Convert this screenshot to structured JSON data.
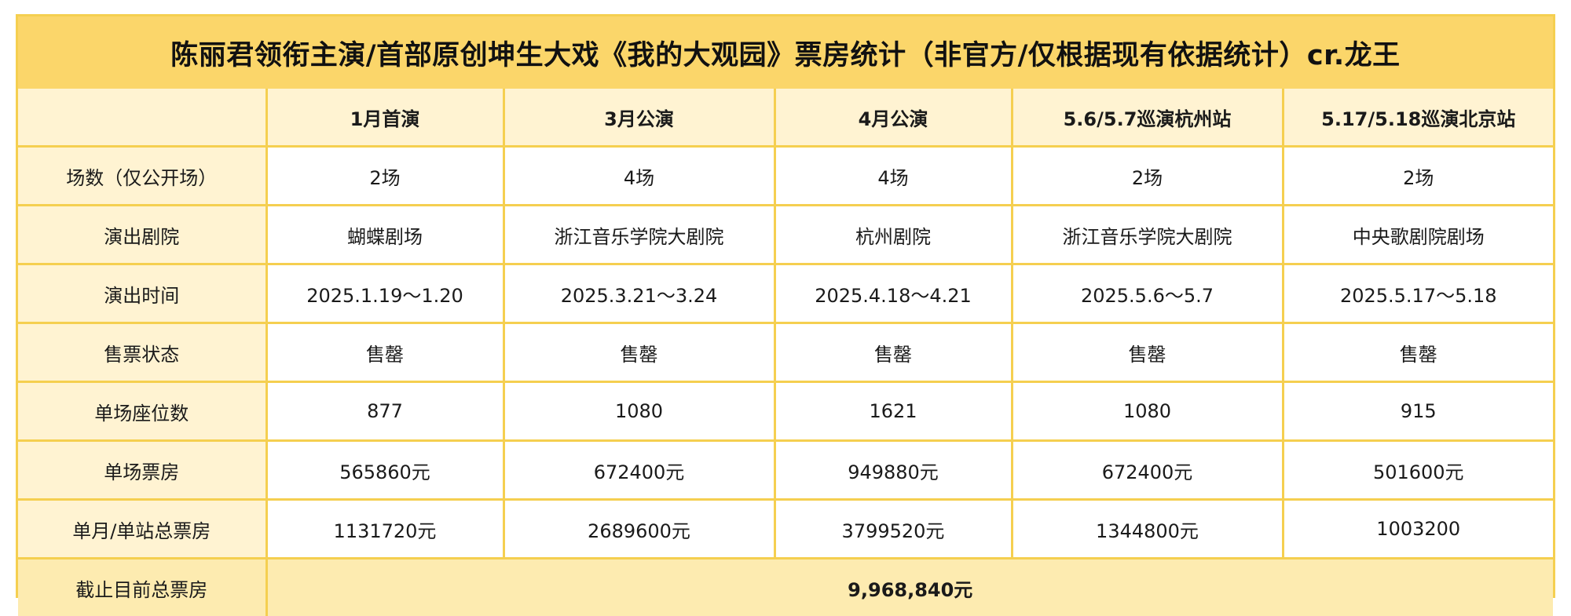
{
  "title": "陈丽君领衔主演/首部原创坤生大戏《我的大观园》票房统计（非官方/仅根据现有依据统计）cr.龙王",
  "columns": [
    "1月首演",
    "3月公演",
    "4月公演",
    "5.6/5.7巡演杭州站",
    "5.17/5.18巡演北京站"
  ],
  "rows": [
    {
      "label": "场数（仅公开场）",
      "values": [
        "2场",
        "4场",
        "4场",
        "2场",
        "2场"
      ]
    },
    {
      "label": "演出剧院",
      "values": [
        "蝴蝶剧场",
        "浙江音乐学院大剧院",
        "杭州剧院",
        "浙江音乐学院大剧院",
        "中央歌剧院剧场"
      ]
    },
    {
      "label": "演出时间",
      "values": [
        "2025.1.19～1.20",
        "2025.3.21～3.24",
        "2025.4.18～4.21",
        "2025.5.6～5.7",
        "2025.5.17～5.18"
      ]
    },
    {
      "label": "售票状态",
      "values": [
        "售罄",
        "售罄",
        "售罄",
        "售罄",
        "售罄"
      ]
    },
    {
      "label": "单场座位数",
      "values": [
        "877",
        "1080",
        "1621",
        "1080",
        "915"
      ]
    },
    {
      "label": "单场票房",
      "values": [
        "565860元",
        "672400元",
        "949880元",
        "672400元",
        "501600元"
      ]
    },
    {
      "label": "单月/单站总票房",
      "values": [
        "1131720元",
        "2689600元",
        "3799520元",
        "1344800元",
        "1003200"
      ]
    }
  ],
  "total": {
    "label": "截止目前总票房",
    "value": "9,968,840元"
  },
  "colors": {
    "title_bg": "#fbd66a",
    "grid_line": "#f5cf50",
    "label_bg": "#fff3d2",
    "total_bg": "#fdebb0"
  }
}
